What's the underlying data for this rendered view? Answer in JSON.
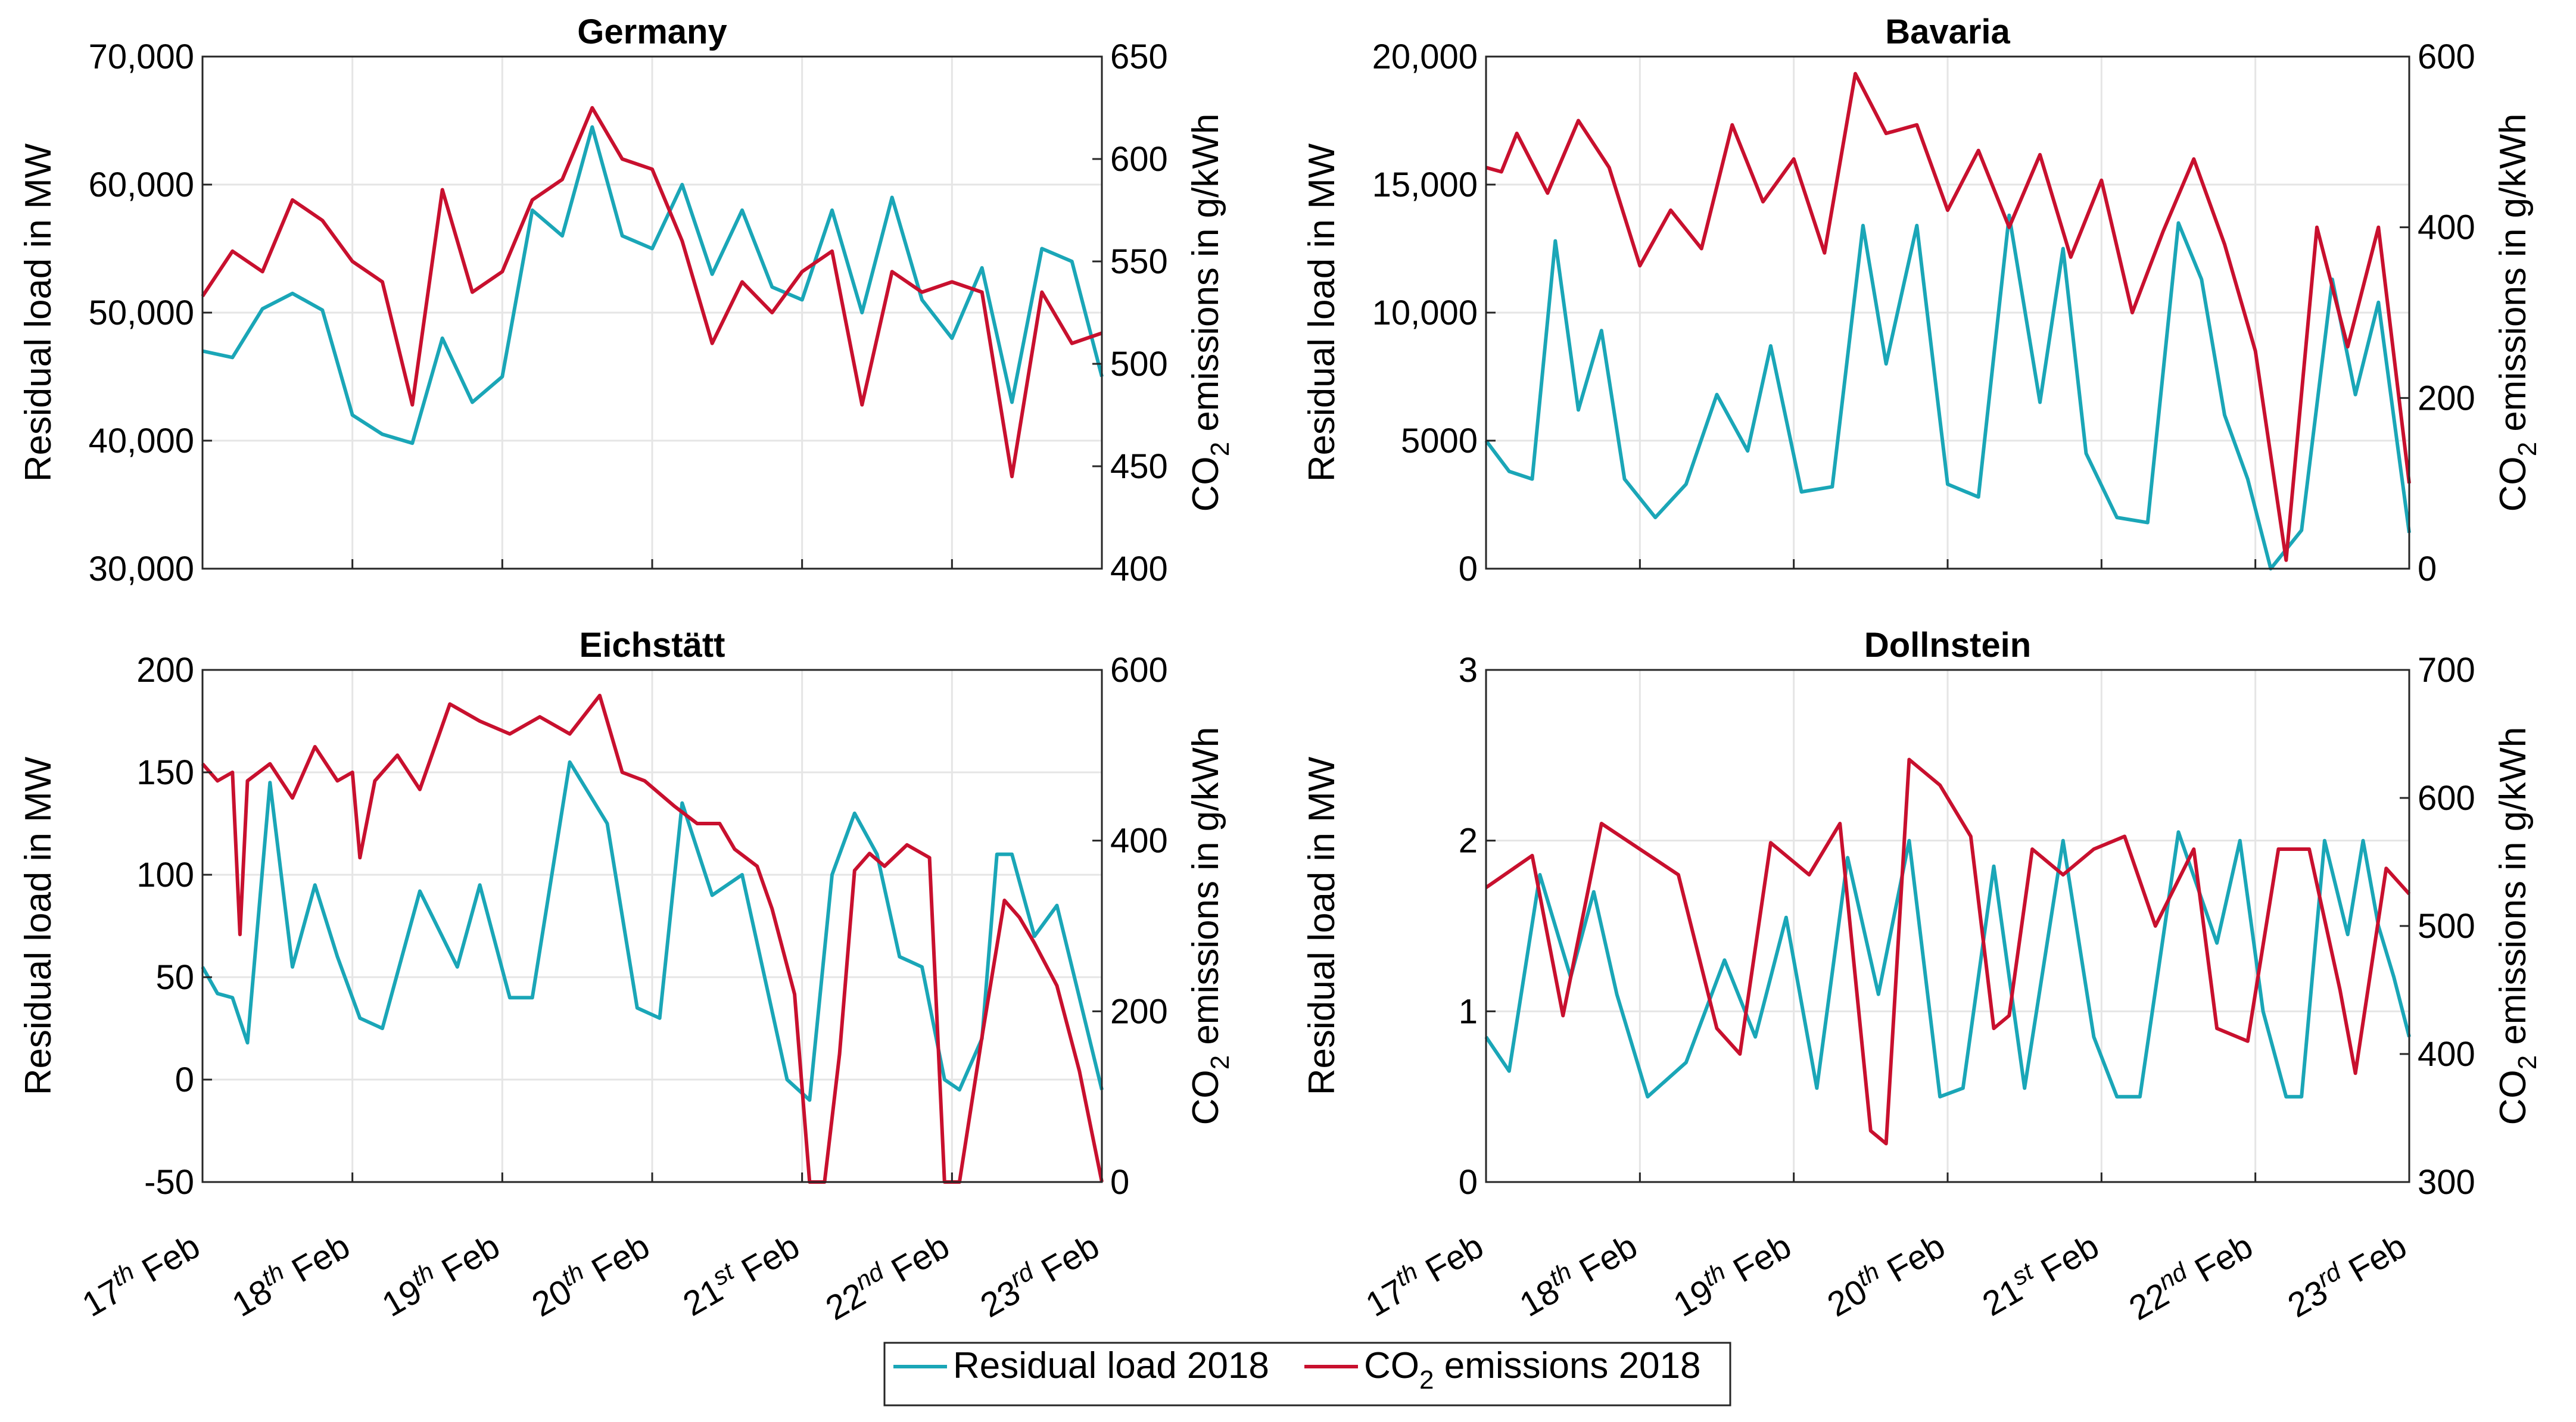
{
  "chart_data": [
    {
      "type": "line",
      "title": "Germany",
      "ylabel": "Residual load in MW",
      "y2label": "CO2 emissions in g/kWh",
      "ylim": [
        30000,
        70000
      ],
      "y2lim": [
        400,
        650
      ],
      "yticks": [
        30000,
        40000,
        50000,
        60000,
        70000
      ],
      "yticklabels": [
        "30,000",
        "40,000",
        "50,000",
        "60,000",
        "70,000"
      ],
      "y2ticks": [
        400,
        450,
        500,
        550,
        600,
        650
      ],
      "y2ticklabels": [
        "400",
        "450",
        "500",
        "550",
        "600",
        "650"
      ],
      "xlim": [
        0,
        6
      ],
      "series": [
        {
          "name": "Residual load 2018",
          "axis": "left",
          "x": [
            0,
            0.2,
            0.4,
            0.6,
            0.8,
            1.0,
            1.2,
            1.4,
            1.6,
            1.8,
            2.0,
            2.2,
            2.4,
            2.6,
            2.8,
            3.0,
            3.2,
            3.4,
            3.6,
            3.8,
            4.0,
            4.2,
            4.4,
            4.6,
            4.8,
            5.0,
            5.2,
            5.4,
            5.6,
            5.8,
            6.0
          ],
          "y": [
            47000,
            46500,
            50300,
            51500,
            50200,
            42000,
            40500,
            39800,
            48000,
            43000,
            45000,
            58000,
            56000,
            64500,
            56000,
            55000,
            60000,
            53000,
            58000,
            52000,
            51000,
            58000,
            50000,
            59000,
            51000,
            48000,
            53500,
            43000,
            55000,
            54000,
            45000
          ]
        },
        {
          "name": "CO2 emissions 2018",
          "axis": "right",
          "x": [
            0,
            0.2,
            0.4,
            0.6,
            0.8,
            1.0,
            1.2,
            1.4,
            1.6,
            1.8,
            2.0,
            2.2,
            2.4,
            2.6,
            2.8,
            3.0,
            3.2,
            3.4,
            3.6,
            3.8,
            4.0,
            4.2,
            4.4,
            4.6,
            4.8,
            5.0,
            5.2,
            5.4,
            5.6,
            5.8,
            6.0
          ],
          "y": [
            533,
            555,
            545,
            580,
            570,
            550,
            540,
            480,
            585,
            535,
            545,
            580,
            590,
            625,
            600,
            595,
            560,
            510,
            540,
            525,
            545,
            555,
            480,
            545,
            535,
            540,
            535,
            445,
            535,
            510,
            515
          ]
        }
      ]
    },
    {
      "type": "line",
      "title": "Bavaria",
      "ylabel": "Residual load in MW",
      "y2label": "CO2 emissions in g/kWh",
      "ylim": [
        0,
        20000
      ],
      "y2lim": [
        0,
        600
      ],
      "yticks": [
        0,
        5000,
        10000,
        15000,
        20000
      ],
      "yticklabels": [
        "0",
        "5000",
        "10,000",
        "15,000",
        "20,000"
      ],
      "y2ticks": [
        0,
        200,
        400,
        600
      ],
      "y2ticklabels": [
        "0",
        "200",
        "400",
        "600"
      ],
      "xlim": [
        0,
        6
      ],
      "series": [
        {
          "name": "Residual load 2018",
          "axis": "left",
          "x": [
            0,
            0.15,
            0.3,
            0.45,
            0.6,
            0.75,
            0.9,
            1.1,
            1.3,
            1.5,
            1.7,
            1.85,
            2.05,
            2.25,
            2.45,
            2.6,
            2.8,
            3.0,
            3.2,
            3.4,
            3.6,
            3.75,
            3.9,
            4.1,
            4.3,
            4.5,
            4.65,
            4.8,
            4.95,
            5.1,
            5.3,
            5.5,
            5.65,
            5.8,
            6.0
          ],
          "y": [
            5000,
            3800,
            3500,
            12800,
            6200,
            9300,
            3500,
            2000,
            3300,
            6800,
            4600,
            8700,
            3000,
            3200,
            13400,
            8000,
            13400,
            3300,
            2800,
            13800,
            6500,
            12500,
            4500,
            2000,
            1800,
            13500,
            11300,
            6000,
            3500,
            0,
            1500,
            11300,
            6800,
            10400,
            1400
          ]
        },
        {
          "name": "CO2 emissions 2018",
          "axis": "right",
          "x": [
            0,
            0.1,
            0.2,
            0.4,
            0.6,
            0.8,
            1.0,
            1.2,
            1.4,
            1.6,
            1.8,
            2.0,
            2.2,
            2.4,
            2.6,
            2.8,
            3.0,
            3.2,
            3.4,
            3.6,
            3.8,
            4.0,
            4.2,
            4.4,
            4.6,
            4.8,
            5.0,
            5.2,
            5.4,
            5.6,
            5.8,
            6.0
          ],
          "y": [
            470,
            465,
            510,
            440,
            525,
            470,
            355,
            420,
            375,
            520,
            430,
            480,
            370,
            580,
            510,
            520,
            420,
            490,
            400,
            485,
            365,
            455,
            300,
            395,
            480,
            380,
            255,
            10,
            400,
            260,
            400,
            100
          ]
        }
      ]
    },
    {
      "type": "line",
      "title": "Eichstätt",
      "ylabel": "Residual load in MW",
      "y2label": "CO2 emissions in g/kWh",
      "ylim": [
        -50,
        200
      ],
      "y2lim": [
        0,
        600
      ],
      "yticks": [
        -50,
        0,
        50,
        100,
        150,
        200
      ],
      "yticklabels": [
        "-50",
        "0",
        "50",
        "100",
        "150",
        "200"
      ],
      "y2ticks": [
        0,
        200,
        400,
        600
      ],
      "y2ticklabels": [
        "0",
        "200",
        "400",
        "600"
      ],
      "xlim": [
        0,
        6
      ],
      "series": [
        {
          "name": "Residual load 2018",
          "axis": "left",
          "x": [
            0,
            0.1,
            0.2,
            0.3,
            0.45,
            0.6,
            0.75,
            0.9,
            1.05,
            1.2,
            1.45,
            1.7,
            1.85,
            2.05,
            2.2,
            2.45,
            2.7,
            2.9,
            3.05,
            3.2,
            3.4,
            3.6,
            3.75,
            3.9,
            4.05,
            4.2,
            4.35,
            4.5,
            4.65,
            4.8,
            4.95,
            5.05,
            5.2,
            5.3,
            5.4,
            5.55,
            5.7,
            5.85,
            6.0
          ],
          "y": [
            55,
            42,
            40,
            18,
            145,
            55,
            95,
            60,
            30,
            25,
            92,
            55,
            95,
            40,
            40,
            155,
            125,
            35,
            30,
            135,
            90,
            100,
            50,
            0,
            -10,
            100,
            130,
            110,
            60,
            55,
            0,
            -5,
            20,
            110,
            110,
            70,
            85,
            40,
            -5
          ]
        },
        {
          "name": "CO2 emissions 2018",
          "axis": "right",
          "x": [
            0,
            0.1,
            0.2,
            0.25,
            0.3,
            0.45,
            0.6,
            0.75,
            0.9,
            1.0,
            1.05,
            1.15,
            1.3,
            1.45,
            1.65,
            1.85,
            2.05,
            2.25,
            2.45,
            2.65,
            2.8,
            2.95,
            3.15,
            3.3,
            3.45,
            3.55,
            3.7,
            3.8,
            3.95,
            4.05,
            4.15,
            4.25,
            4.35,
            4.45,
            4.55,
            4.7,
            4.85,
            4.95,
            5.05,
            5.2,
            5.35,
            5.45,
            5.55,
            5.7,
            5.85,
            6.0
          ],
          "y": [
            490,
            470,
            480,
            290,
            470,
            490,
            450,
            510,
            470,
            480,
            380,
            470,
            500,
            460,
            560,
            540,
            525,
            545,
            525,
            570,
            480,
            470,
            440,
            420,
            420,
            390,
            370,
            320,
            220,
            0,
            0,
            150,
            365,
            385,
            370,
            395,
            380,
            0,
            0,
            170,
            330,
            310,
            280,
            230,
            130,
            0
          ]
        }
      ]
    },
    {
      "type": "line",
      "title": "Dollnstein",
      "ylabel": "Residual load in MW",
      "y2label": "CO2 emissions in g/kWh",
      "ylim": [
        0,
        3
      ],
      "y2lim": [
        300,
        700
      ],
      "yticks": [
        0,
        1,
        2,
        3
      ],
      "yticklabels": [
        "0",
        "1",
        "2",
        "3"
      ],
      "y2ticks": [
        300,
        400,
        500,
        600,
        700
      ],
      "y2ticklabels": [
        "300",
        "400",
        "500",
        "600",
        "700"
      ],
      "xlim": [
        0,
        6
      ],
      "series": [
        {
          "name": "Residual load 2018",
          "axis": "left",
          "x": [
            0,
            0.15,
            0.35,
            0.55,
            0.7,
            0.85,
            1.05,
            1.3,
            1.55,
            1.75,
            1.95,
            2.15,
            2.35,
            2.55,
            2.75,
            2.95,
            3.1,
            3.3,
            3.5,
            3.75,
            3.95,
            4.1,
            4.25,
            4.5,
            4.75,
            4.9,
            5.05,
            5.2,
            5.3,
            5.45,
            5.6,
            5.7,
            5.8,
            5.9,
            6.0
          ],
          "y": [
            0.85,
            0.65,
            1.8,
            1.2,
            1.7,
            1.1,
            0.5,
            0.7,
            1.3,
            0.85,
            1.55,
            0.55,
            1.9,
            1.1,
            2.0,
            0.5,
            0.55,
            1.85,
            0.55,
            2.0,
            0.85,
            0.5,
            0.5,
            2.05,
            1.4,
            2.0,
            1.0,
            0.5,
            0.5,
            2.0,
            1.45,
            2.0,
            1.5,
            1.2,
            0.85
          ]
        },
        {
          "name": "CO2 emissions 2018",
          "axis": "right",
          "x": [
            0,
            0.3,
            0.5,
            0.75,
            1.0,
            1.25,
            1.5,
            1.65,
            1.85,
            2.1,
            2.3,
            2.5,
            2.6,
            2.75,
            2.95,
            3.15,
            3.3,
            3.4,
            3.55,
            3.75,
            3.95,
            4.15,
            4.35,
            4.6,
            4.75,
            4.95,
            5.15,
            5.35,
            5.55,
            5.65,
            5.85,
            6.0
          ],
          "y": [
            530,
            555,
            430,
            580,
            560,
            540,
            420,
            400,
            565,
            540,
            580,
            340,
            330,
            630,
            610,
            570,
            420,
            430,
            560,
            540,
            560,
            570,
            500,
            560,
            420,
            410,
            560,
            560,
            450,
            385,
            545,
            525
          ]
        }
      ]
    }
  ],
  "xaxis": {
    "ticks": [
      0,
      1,
      2,
      3,
      4,
      5,
      6
    ],
    "labels": [
      {
        "day": "17",
        "suffix": "th",
        "month": "Feb"
      },
      {
        "day": "18",
        "suffix": "th",
        "month": "Feb"
      },
      {
        "day": "19",
        "suffix": "th",
        "month": "Feb"
      },
      {
        "day": "20",
        "suffix": "th",
        "month": "Feb"
      },
      {
        "day": "21",
        "suffix": "st",
        "month": "Feb"
      },
      {
        "day": "22",
        "suffix": "nd",
        "month": "Feb"
      },
      {
        "day": "23",
        "suffix": "rd",
        "month": "Feb"
      }
    ]
  },
  "legend": {
    "position": "bottom-center",
    "items": [
      {
        "label": "Residual load 2018",
        "color": "#1aa6b7"
      },
      {
        "label_main": "CO",
        "label_sub": "2",
        "label_rest": " emissions 2018",
        "color": "#c8102e"
      }
    ]
  },
  "colors": {
    "residual": "#1aa6b7",
    "co2": "#c8102e"
  }
}
